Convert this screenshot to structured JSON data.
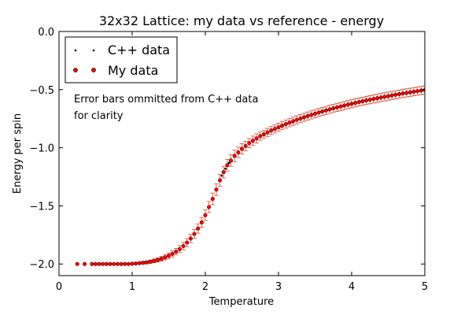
{
  "chart_data": {
    "type": "scatter",
    "title": "32x32 Lattice: my data vs reference - energy",
    "xlabel": "Temperature",
    "ylabel": "Energy per spin",
    "xlim": [
      0,
      5
    ],
    "ylim": [
      -2.1,
      0.0
    ],
    "xticks": [
      "0",
      "1",
      "2",
      "3",
      "4",
      "5"
    ],
    "yticks": [
      "0.0",
      "−0.5",
      "−1.0",
      "−1.5",
      "−2.0"
    ],
    "grid": false,
    "legend_position": "top-left",
    "annotation_lines": [
      "Error bars ommitted from C++ data",
      "for clarity"
    ],
    "colors": {
      "cpp": "#000000",
      "mine": "#ff0000",
      "errorbar": "#e24a33"
    },
    "series": [
      {
        "name": "C++ data",
        "marker": "point",
        "x": [
          0.5,
          0.55,
          0.6,
          0.65,
          0.7,
          0.75,
          0.8,
          0.85,
          0.9,
          0.95,
          1.0,
          1.05,
          1.1,
          1.15,
          1.2,
          1.25,
          1.3,
          1.35,
          1.4,
          1.45,
          1.5,
          1.55,
          1.6,
          1.65,
          1.7,
          1.75,
          1.8,
          1.85,
          1.9,
          1.95,
          2.0,
          2.05,
          2.1,
          2.15,
          2.2,
          2.225,
          2.25,
          2.275,
          2.3,
          2.325,
          2.35,
          2.4,
          2.45,
          2.5,
          2.55,
          2.6,
          2.65,
          2.7,
          2.75,
          2.8,
          2.85,
          2.9,
          2.95,
          3.0,
          3.05,
          3.1,
          3.15,
          3.2,
          3.25,
          3.3,
          3.35,
          3.4,
          3.45,
          3.5,
          3.55,
          3.6,
          3.65,
          3.7,
          3.75,
          3.8,
          3.85,
          3.9,
          3.95,
          4.0,
          4.05,
          4.1,
          4.15,
          4.2,
          4.25,
          4.3,
          4.35,
          4.4,
          4.45,
          4.5,
          4.55,
          4.6,
          4.65,
          4.7,
          4.75,
          4.8,
          4.85,
          4.9,
          4.95,
          5.0
        ],
        "y": [
          -2.0,
          -2.0,
          -2.0,
          -2.0,
          -2.0,
          -2.0,
          -2.0,
          -2.0,
          -2.0,
          -2.0,
          -1.998,
          -1.996,
          -1.993,
          -1.99,
          -1.986,
          -1.98,
          -1.973,
          -1.965,
          -1.955,
          -1.943,
          -1.929,
          -1.913,
          -1.894,
          -1.872,
          -1.846,
          -1.816,
          -1.781,
          -1.741,
          -1.695,
          -1.642,
          -1.58,
          -1.51,
          -1.44,
          -1.36,
          -1.28,
          -1.24,
          -1.21,
          -1.18,
          -1.15,
          -1.13,
          -1.11,
          -1.07,
          -1.04,
          -1.01,
          -0.985,
          -0.96,
          -0.94,
          -0.92,
          -0.9,
          -0.885,
          -0.868,
          -0.852,
          -0.838,
          -0.824,
          -0.81,
          -0.797,
          -0.784,
          -0.772,
          -0.76,
          -0.749,
          -0.738,
          -0.727,
          -0.717,
          -0.707,
          -0.697,
          -0.688,
          -0.679,
          -0.67,
          -0.661,
          -0.653,
          -0.645,
          -0.637,
          -0.629,
          -0.622,
          -0.614,
          -0.607,
          -0.6,
          -0.593,
          -0.587,
          -0.58,
          -0.574,
          -0.568,
          -0.562,
          -0.556,
          -0.55,
          -0.544,
          -0.539,
          -0.533,
          -0.528,
          -0.523,
          -0.518,
          -0.513,
          -0.508,
          -0.503
        ]
      },
      {
        "name": "My data",
        "marker": "circle",
        "x": [
          0.25,
          0.35,
          0.45,
          0.5,
          0.55,
          0.6,
          0.65,
          0.7,
          0.75,
          0.8,
          0.85,
          0.9,
          0.95,
          1.0,
          1.05,
          1.1,
          1.15,
          1.2,
          1.25,
          1.3,
          1.35,
          1.4,
          1.45,
          1.5,
          1.55,
          1.6,
          1.65,
          1.7,
          1.75,
          1.8,
          1.85,
          1.9,
          1.95,
          2.0,
          2.05,
          2.1,
          2.15,
          2.2,
          2.25,
          2.3,
          2.35,
          2.4,
          2.45,
          2.5,
          2.55,
          2.6,
          2.65,
          2.7,
          2.75,
          2.8,
          2.85,
          2.9,
          2.95,
          3.0,
          3.05,
          3.1,
          3.15,
          3.2,
          3.25,
          3.3,
          3.35,
          3.4,
          3.45,
          3.5,
          3.55,
          3.6,
          3.65,
          3.7,
          3.75,
          3.8,
          3.85,
          3.9,
          3.95,
          4.0,
          4.05,
          4.1,
          4.15,
          4.2,
          4.25,
          4.3,
          4.35,
          4.4,
          4.45,
          4.5,
          4.55,
          4.6,
          4.65,
          4.7,
          4.75,
          4.8,
          4.85,
          4.9,
          4.95,
          5.0
        ],
        "y": [
          -2.0,
          -2.0,
          -2.0,
          -2.0,
          -2.0,
          -2.0,
          -2.0,
          -2.0,
          -2.0,
          -2.0,
          -2.0,
          -2.0,
          -2.0,
          -1.998,
          -1.996,
          -1.993,
          -1.99,
          -1.986,
          -1.98,
          -1.973,
          -1.965,
          -1.955,
          -1.943,
          -1.929,
          -1.913,
          -1.894,
          -1.872,
          -1.846,
          -1.816,
          -1.781,
          -1.741,
          -1.695,
          -1.642,
          -1.58,
          -1.51,
          -1.44,
          -1.36,
          -1.28,
          -1.21,
          -1.15,
          -1.11,
          -1.07,
          -1.04,
          -1.01,
          -0.985,
          -0.96,
          -0.94,
          -0.92,
          -0.9,
          -0.885,
          -0.868,
          -0.852,
          -0.838,
          -0.824,
          -0.81,
          -0.797,
          -0.784,
          -0.772,
          -0.76,
          -0.749,
          -0.738,
          -0.727,
          -0.717,
          -0.707,
          -0.697,
          -0.688,
          -0.679,
          -0.67,
          -0.661,
          -0.653,
          -0.645,
          -0.637,
          -0.629,
          -0.622,
          -0.614,
          -0.607,
          -0.6,
          -0.593,
          -0.587,
          -0.58,
          -0.574,
          -0.568,
          -0.562,
          -0.556,
          -0.55,
          -0.544,
          -0.539,
          -0.533,
          -0.528,
          -0.523,
          -0.518,
          -0.513,
          -0.508,
          -0.503
        ],
        "yerr": [
          0.002,
          0.002,
          0.002,
          0.002,
          0.002,
          0.002,
          0.002,
          0.002,
          0.002,
          0.002,
          0.002,
          0.003,
          0.004,
          0.005,
          0.006,
          0.008,
          0.01,
          0.012,
          0.014,
          0.016,
          0.018,
          0.02,
          0.022,
          0.024,
          0.026,
          0.028,
          0.03,
          0.032,
          0.034,
          0.036,
          0.038,
          0.04,
          0.042,
          0.045,
          0.048,
          0.05,
          0.05,
          0.05,
          0.05,
          0.05,
          0.05,
          0.05,
          0.045,
          0.045,
          0.04,
          0.04,
          0.04,
          0.04,
          0.035,
          0.035,
          0.035,
          0.035,
          0.035,
          0.035,
          0.035,
          0.035,
          0.035,
          0.035,
          0.035,
          0.035,
          0.035,
          0.035,
          0.035,
          0.035,
          0.035,
          0.035,
          0.035,
          0.035,
          0.035,
          0.035,
          0.035,
          0.035,
          0.035,
          0.035,
          0.035,
          0.035,
          0.035,
          0.035,
          0.035,
          0.035,
          0.035,
          0.035,
          0.035,
          0.035,
          0.035,
          0.035,
          0.035,
          0.035,
          0.035,
          0.035,
          0.035,
          0.035,
          0.035,
          0.035
        ]
      }
    ]
  }
}
